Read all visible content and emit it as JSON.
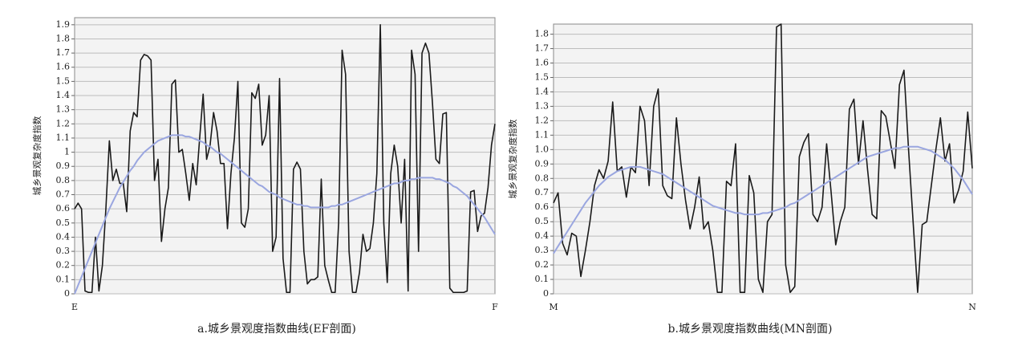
{
  "chart_data": [
    {
      "type": "line",
      "y_label": "城乡景观复杂度指数",
      "caption": "a.城乡景观度指数曲线(EF剖面)",
      "categories": [
        "E",
        null,
        null,
        null,
        null,
        null,
        null,
        null,
        null,
        null,
        null,
        null,
        null,
        null,
        null,
        null,
        null,
        null,
        null,
        null,
        null,
        null,
        null,
        null,
        null,
        null,
        null,
        null,
        null,
        null,
        null,
        null,
        null,
        null,
        null,
        null,
        null,
        null,
        null,
        null,
        null,
        null,
        null,
        null,
        null,
        null,
        null,
        null,
        null,
        null,
        null,
        null,
        null,
        null,
        null,
        null,
        null,
        null,
        null,
        null,
        null,
        null,
        null,
        null,
        null,
        null,
        null,
        null,
        null,
        null,
        null,
        null,
        null,
        null,
        null,
        null,
        null,
        null,
        null,
        null,
        null,
        null,
        null,
        null,
        null,
        null,
        null,
        null,
        null,
        null,
        null,
        null,
        null,
        null,
        null,
        null,
        null,
        null,
        null,
        null,
        null,
        null,
        null,
        null,
        null,
        null,
        null,
        null,
        null,
        null,
        null,
        null,
        null,
        null,
        null,
        null,
        null,
        null,
        null,
        null,
        null,
        "F"
      ],
      "series": [
        {
          "color": "#1a1a1a",
          "values": [
            0.6,
            0.64,
            0.6,
            0.02,
            0.01,
            0.01,
            0.4,
            0.02,
            0.2,
            0.6,
            1.08,
            0.8,
            0.88,
            0.78,
            0.78,
            0.58,
            1.15,
            1.28,
            1.25,
            1.65,
            1.69,
            1.68,
            1.65,
            0.8,
            0.95,
            0.37,
            0.6,
            0.75,
            1.48,
            1.51,
            1.0,
            1.02,
            0.85,
            0.66,
            0.92,
            0.77,
            1.1,
            1.41,
            0.95,
            1.05,
            1.28,
            1.15,
            0.92,
            0.92,
            0.46,
            0.85,
            1.1,
            1.5,
            0.5,
            0.47,
            0.6,
            1.42,
            1.38,
            1.48,
            1.05,
            1.12,
            1.4,
            0.3,
            0.4,
            1.52,
            0.25,
            0.01,
            0.01,
            0.88,
            0.93,
            0.88,
            0.3,
            0.07,
            0.1,
            0.1,
            0.12,
            0.81,
            0.2,
            0.1,
            0.01,
            0.01,
            0.5,
            1.72,
            1.55,
            0.3,
            0.01,
            0.01,
            0.15,
            0.42,
            0.3,
            0.32,
            0.5,
            0.85,
            1.9,
            0.5,
            0.08,
            0.85,
            1.05,
            0.9,
            0.5,
            0.95,
            0.02,
            1.72,
            1.55,
            0.3,
            1.7,
            1.77,
            1.7,
            1.35,
            0.95,
            0.92,
            1.27,
            1.28,
            0.04,
            0.01,
            0.01,
            0.01,
            0.01,
            0.02,
            0.72,
            0.73,
            0.44,
            0.55,
            0.57,
            0.75,
            1.05,
            1.2
          ]
        },
        {
          "color": "#9aa6e0",
          "values": [
            0.0,
            0.06,
            0.12,
            0.18,
            0.24,
            0.3,
            0.36,
            0.42,
            0.48,
            0.54,
            0.6,
            0.65,
            0.7,
            0.75,
            0.79,
            0.83,
            0.87,
            0.9,
            0.94,
            0.97,
            1.0,
            1.02,
            1.04,
            1.06,
            1.08,
            1.09,
            1.1,
            1.11,
            1.12,
            1.12,
            1.12,
            1.12,
            1.11,
            1.11,
            1.1,
            1.09,
            1.08,
            1.07,
            1.05,
            1.04,
            1.02,
            1.0,
            0.99,
            0.97,
            0.95,
            0.93,
            0.91,
            0.89,
            0.87,
            0.85,
            0.83,
            0.81,
            0.79,
            0.77,
            0.76,
            0.74,
            0.72,
            0.71,
            0.7,
            0.68,
            0.67,
            0.66,
            0.65,
            0.64,
            0.63,
            0.63,
            0.62,
            0.62,
            0.61,
            0.61,
            0.61,
            0.61,
            0.61,
            0.61,
            0.62,
            0.62,
            0.63,
            0.63,
            0.64,
            0.65,
            0.66,
            0.67,
            0.68,
            0.69,
            0.7,
            0.71,
            0.72,
            0.73,
            0.74,
            0.75,
            0.76,
            0.77,
            0.78,
            0.78,
            0.79,
            0.8,
            0.8,
            0.81,
            0.81,
            0.82,
            0.82,
            0.82,
            0.82,
            0.82,
            0.81,
            0.81,
            0.8,
            0.79,
            0.78,
            0.76,
            0.75,
            0.73,
            0.71,
            0.69,
            0.66,
            0.63,
            0.6,
            0.57,
            0.54,
            0.5,
            0.46,
            0.42
          ]
        }
      ],
      "ylim": [
        0,
        1.95
      ],
      "yticks": [
        0,
        0.1,
        0.2,
        0.3,
        0.4,
        0.5,
        0.6,
        0.7,
        0.8,
        0.9,
        1,
        1.1,
        1.2,
        1.3,
        1.4,
        1.5,
        1.6,
        1.7,
        1.8,
        1.9
      ],
      "grid": true
    },
    {
      "type": "line",
      "y_label": "城乡景观复杂度指数",
      "caption": "b.城乡景观度指数曲线(MN剖面)",
      "categories": [
        "M",
        null,
        null,
        null,
        null,
        null,
        null,
        null,
        null,
        null,
        null,
        null,
        null,
        null,
        null,
        null,
        null,
        null,
        null,
        null,
        null,
        null,
        null,
        null,
        null,
        null,
        null,
        null,
        null,
        null,
        null,
        null,
        null,
        null,
        null,
        null,
        null,
        null,
        null,
        null,
        null,
        null,
        null,
        null,
        null,
        null,
        null,
        null,
        null,
        null,
        null,
        null,
        null,
        null,
        null,
        null,
        null,
        null,
        null,
        null,
        null,
        null,
        null,
        null,
        null,
        null,
        null,
        null,
        null,
        null,
        null,
        null,
        null,
        null,
        null,
        null,
        null,
        null,
        null,
        null,
        null,
        null,
        null,
        null,
        null,
        null,
        null,
        null,
        null,
        null,
        null,
        null,
        "N"
      ],
      "series": [
        {
          "color": "#1a1a1a",
          "values": [
            0.63,
            0.7,
            0.35,
            0.27,
            0.42,
            0.4,
            0.12,
            0.3,
            0.5,
            0.75,
            0.86,
            0.8,
            0.92,
            1.33,
            0.85,
            0.88,
            0.67,
            0.88,
            0.84,
            1.3,
            1.2,
            0.75,
            1.3,
            1.42,
            0.75,
            0.68,
            0.66,
            1.22,
            0.9,
            0.65,
            0.45,
            0.6,
            0.81,
            0.45,
            0.5,
            0.3,
            0.01,
            0.01,
            0.78,
            0.75,
            1.04,
            0.01,
            0.01,
            0.82,
            0.7,
            0.1,
            0.01,
            0.5,
            0.55,
            1.85,
            1.87,
            0.2,
            0.01,
            0.05,
            0.95,
            1.05,
            1.11,
            0.55,
            0.5,
            0.6,
            1.04,
            0.7,
            0.34,
            0.5,
            0.6,
            1.28,
            1.35,
            0.9,
            1.2,
            0.86,
            0.55,
            0.52,
            1.27,
            1.23,
            1.05,
            0.87,
            1.45,
            1.55,
            1.0,
            0.5,
            0.01,
            0.48,
            0.5,
            0.75,
            1.0,
            1.22,
            0.92,
            1.04,
            0.63,
            0.72,
            0.85,
            1.26,
            0.87
          ]
        },
        {
          "color": "#9aa6e0",
          "values": [
            0.28,
            0.33,
            0.38,
            0.43,
            0.48,
            0.53,
            0.58,
            0.63,
            0.67,
            0.71,
            0.75,
            0.78,
            0.81,
            0.83,
            0.85,
            0.86,
            0.87,
            0.88,
            0.88,
            0.88,
            0.87,
            0.86,
            0.85,
            0.84,
            0.83,
            0.81,
            0.79,
            0.77,
            0.75,
            0.73,
            0.71,
            0.69,
            0.67,
            0.65,
            0.63,
            0.61,
            0.6,
            0.59,
            0.58,
            0.57,
            0.56,
            0.56,
            0.55,
            0.55,
            0.55,
            0.55,
            0.56,
            0.56,
            0.57,
            0.58,
            0.59,
            0.6,
            0.62,
            0.63,
            0.65,
            0.67,
            0.69,
            0.71,
            0.73,
            0.75,
            0.77,
            0.79,
            0.81,
            0.83,
            0.85,
            0.87,
            0.89,
            0.91,
            0.93,
            0.95,
            0.96,
            0.97,
            0.98,
            0.99,
            1.0,
            1.01,
            1.01,
            1.02,
            1.02,
            1.02,
            1.02,
            1.01,
            1.0,
            0.99,
            0.97,
            0.95,
            0.93,
            0.9,
            0.87,
            0.83,
            0.79,
            0.74,
            0.69
          ]
        }
      ],
      "ylim": [
        0,
        1.87
      ],
      "yticks": [
        0,
        0.1,
        0.2,
        0.3,
        0.4,
        0.5,
        0.6,
        0.7,
        0.8,
        0.9,
        {
          "value": 1,
          "label": "1.0"
        },
        1.1,
        1.2,
        1.3,
        1.4,
        1.5,
        1.6,
        1.7,
        1.8
      ],
      "grid": true
    }
  ]
}
